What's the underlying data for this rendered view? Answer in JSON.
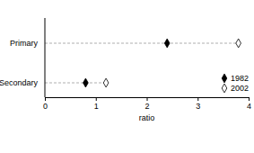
{
  "chart_data": {
    "type": "dot",
    "orientation": "horizontal",
    "x_label": "ratio",
    "categories": [
      "Primary",
      "Secondary"
    ],
    "series": [
      {
        "name": "1982",
        "color": "#000000",
        "marker": "diamond",
        "values": [
          2.4,
          0.8
        ]
      },
      {
        "name": "2002",
        "color": "#000000",
        "marker": "diamond-open",
        "values": [
          3.8,
          1.2
        ]
      }
    ],
    "xlim": [
      0,
      4
    ],
    "xticks": [
      0,
      1,
      2,
      3,
      4
    ],
    "legend": "lower right"
  }
}
